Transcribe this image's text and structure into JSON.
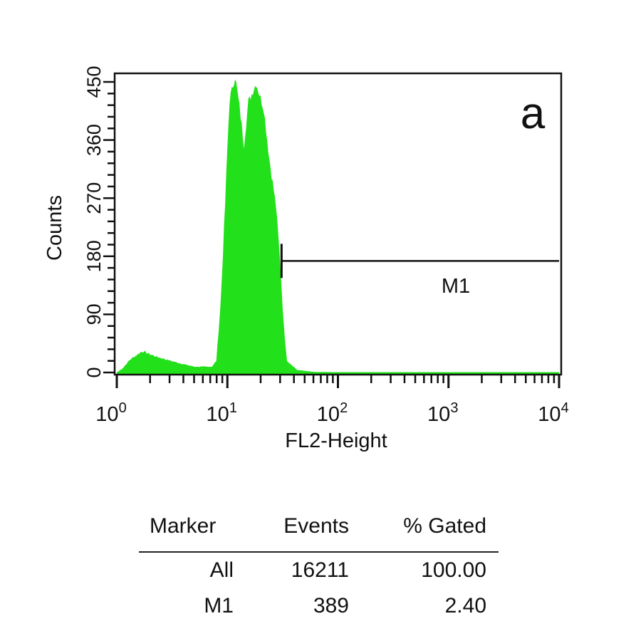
{
  "chart_data": {
    "type": "area",
    "panel_label": "a",
    "xlabel": "FL2-Height",
    "ylabel": "Counts",
    "xscale": "log",
    "xlim": [
      1,
      10000
    ],
    "ylim": [
      0,
      450
    ],
    "xticks": [
      {
        "base": "10",
        "exp": "0"
      },
      {
        "base": "10",
        "exp": "1"
      },
      {
        "base": "10",
        "exp": "2"
      },
      {
        "base": "10",
        "exp": "3"
      },
      {
        "base": "10",
        "exp": "4"
      }
    ],
    "yticks": [
      "0",
      "90",
      "180",
      "270",
      "360",
      "450"
    ],
    "fill_color": "#22e01a",
    "series": [
      {
        "name": "FL2-Height histogram",
        "log10_x": [
          0,
          0.05,
          0.12,
          0.23,
          0.35,
          0.49,
          0.6,
          0.7,
          0.86,
          0.9,
          0.94,
          0.98,
          1.0,
          1.02,
          1.07,
          1.11,
          1.15,
          1.19,
          1.26,
          1.33,
          1.38,
          1.44,
          1.48,
          1.51,
          1.54,
          1.63,
          1.78,
          2.2,
          4.0
        ],
        "counts": [
          0,
          6,
          20,
          33,
          25,
          18,
          13,
          9,
          9,
          18,
          110,
          260,
          348,
          422,
          459,
          411,
          353,
          419,
          448,
          408,
          331,
          257,
          165,
          73,
          18,
          4,
          1,
          0,
          0
        ]
      }
    ],
    "markers": [
      {
        "label": "M1",
        "log10_start": 1.49,
        "log10_end": 4.0,
        "level": 175
      }
    ],
    "table": {
      "headers": [
        "Marker",
        "Events",
        "% Gated"
      ],
      "rows": [
        [
          "All",
          "16211",
          "100.00"
        ],
        [
          "M1",
          "389",
          "2.40"
        ]
      ]
    }
  }
}
